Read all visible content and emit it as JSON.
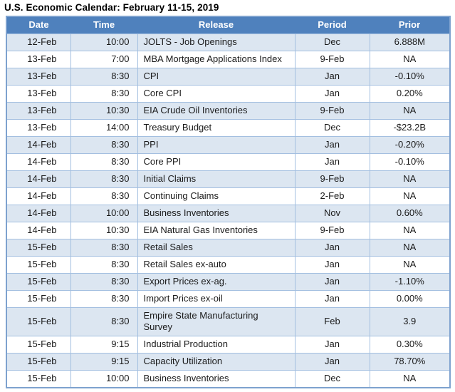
{
  "title": "U.S. Economic Calendar: February 11-15, 2019",
  "colors": {
    "title_text": "#000000",
    "header_bg": "#4f81bd",
    "header_text": "#ffffff",
    "row_bg": "#ffffff",
    "row_alt_bg": "#dce6f1",
    "grid_line": "#a3bfe0",
    "outer_border": "#7ea2cf",
    "cell_text": "#1a1a1a"
  },
  "table": {
    "columns": [
      "Date",
      "Time",
      "Release",
      "Period",
      "Prior"
    ],
    "rows": [
      {
        "date": "12-Feb",
        "time": "10:00",
        "release": "JOLTS - Job Openings",
        "period": "Dec",
        "prior": "6.888M"
      },
      {
        "date": "13-Feb",
        "time": "7:00",
        "release": "MBA Mortgage Applications Index",
        "period": "9-Feb",
        "prior": "NA"
      },
      {
        "date": "13-Feb",
        "time": "8:30",
        "release": "CPI",
        "period": "Jan",
        "prior": "-0.10%"
      },
      {
        "date": "13-Feb",
        "time": "8:30",
        "release": "Core CPI",
        "period": "Jan",
        "prior": "0.20%"
      },
      {
        "date": "13-Feb",
        "time": "10:30",
        "release": "EIA Crude Oil Inventories",
        "period": "9-Feb",
        "prior": "NA"
      },
      {
        "date": "13-Feb",
        "time": "14:00",
        "release": "Treasury Budget",
        "period": "Dec",
        "prior": "-$23.2B"
      },
      {
        "date": "14-Feb",
        "time": "8:30",
        "release": "PPI",
        "period": "Jan",
        "prior": "-0.20%"
      },
      {
        "date": "14-Feb",
        "time": "8:30",
        "release": "Core PPI",
        "period": "Jan",
        "prior": "-0.10%"
      },
      {
        "date": "14-Feb",
        "time": "8:30",
        "release": "Initial Claims",
        "period": "9-Feb",
        "prior": "NA"
      },
      {
        "date": "14-Feb",
        "time": "8:30",
        "release": "Continuing Claims",
        "period": "2-Feb",
        "prior": "NA"
      },
      {
        "date": "14-Feb",
        "time": "10:00",
        "release": "Business Inventories",
        "period": "Nov",
        "prior": "0.60%"
      },
      {
        "date": "14-Feb",
        "time": "10:30",
        "release": "EIA Natural Gas Inventories",
        "period": "9-Feb",
        "prior": "NA"
      },
      {
        "date": "15-Feb",
        "time": "8:30",
        "release": "Retail Sales",
        "period": "Jan",
        "prior": "NA"
      },
      {
        "date": "15-Feb",
        "time": "8:30",
        "release": "Retail Sales ex-auto",
        "period": "Jan",
        "prior": "NA"
      },
      {
        "date": "15-Feb",
        "time": "8:30",
        "release": "Export Prices ex-ag.",
        "period": "Jan",
        "prior": "-1.10%"
      },
      {
        "date": "15-Feb",
        "time": "8:30",
        "release": "Import Prices ex-oil",
        "period": "Jan",
        "prior": "0.00%"
      },
      {
        "date": "15-Feb",
        "time": "8:30",
        "release": "Empire State Manufacturing Survey",
        "period": "Feb",
        "prior": "3.9",
        "release_two_lines": true
      },
      {
        "date": "15-Feb",
        "time": "9:15",
        "release": "Industrial Production",
        "period": "Jan",
        "prior": "0.30%"
      },
      {
        "date": "15-Feb",
        "time": "9:15",
        "release": "Capacity Utilization",
        "period": "Jan",
        "prior": "78.70%"
      },
      {
        "date": "15-Feb",
        "time": "10:00",
        "release": "Business Inventories",
        "period": "Dec",
        "prior": "NA"
      }
    ]
  }
}
